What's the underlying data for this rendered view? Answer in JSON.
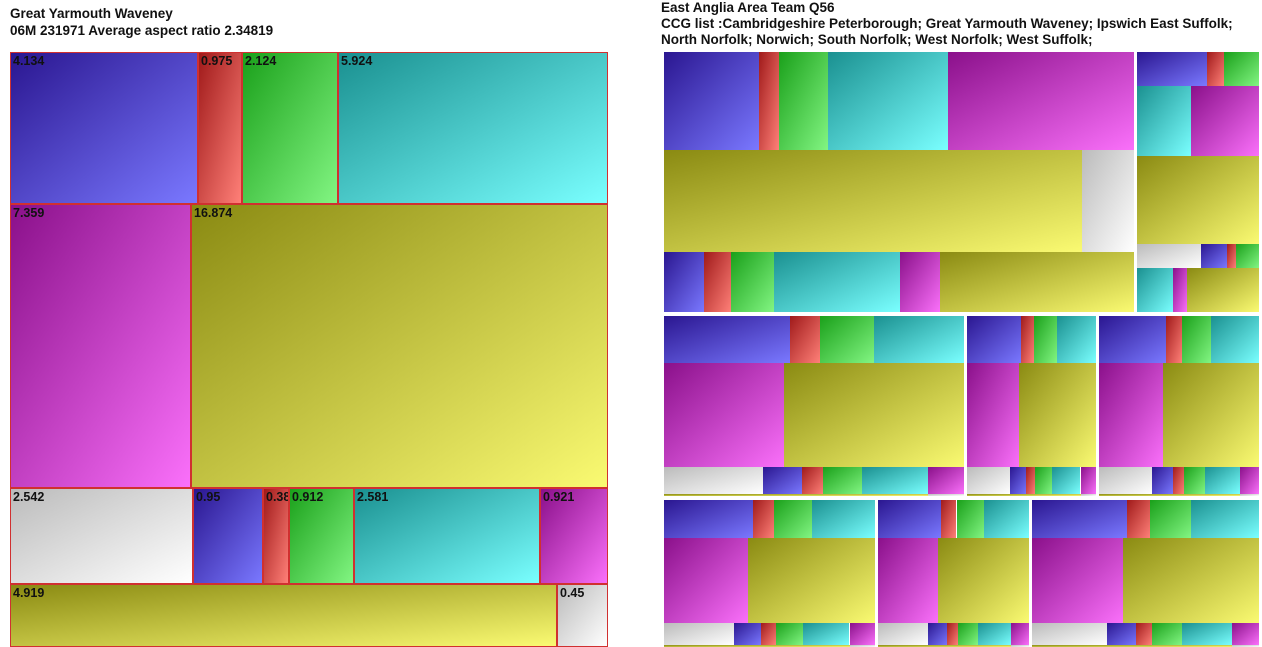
{
  "left_header": {
    "title": "Great Yarmouth  Waveney",
    "subtitle": "06M  231971  Average aspect ratio 2.34819"
  },
  "right_header": {
    "title": "East Anglia Area Team  Q56",
    "ccg_line1": "CCG list :Cambridgeshire  Peterborough; Great Yarmouth  Waveney; Ipswich East Suffolk;",
    "ccg_line2": "North Norfolk; Norwich; South Norfolk; West Norfolk; West Suffolk;"
  },
  "colors": {
    "blue": [
      "#2a1690",
      "#7a78ff"
    ],
    "red": [
      "#a01a1a",
      "#ff8078"
    ],
    "green": [
      "#1aa01a",
      "#82f582"
    ],
    "teal": [
      "#1a9090",
      "#7affff"
    ],
    "magenta": [
      "#8a108a",
      "#fa70fa"
    ],
    "olive": [
      "#8a8a12",
      "#fafa72"
    ],
    "gray": [
      "#bbbbbb",
      "#ffffff"
    ]
  },
  "chart_data": [
    {
      "type": "treemap",
      "title": "Great Yarmouth  Waveney",
      "subtitle": "06M  231971  Average aspect ratio 2.34819",
      "cells": [
        {
          "label": "4.134",
          "value": 4.134,
          "color": "blue"
        },
        {
          "label": "0.975",
          "value": 0.975,
          "color": "red"
        },
        {
          "label": "2.124",
          "value": 2.124,
          "color": "green"
        },
        {
          "label": "5.924",
          "value": 5.924,
          "color": "teal"
        },
        {
          "label": "7.359",
          "value": 7.359,
          "color": "magenta"
        },
        {
          "label": "16.874",
          "value": 16.874,
          "color": "olive"
        },
        {
          "label": "2.542",
          "value": 2.542,
          "color": "gray"
        },
        {
          "label": "0.95",
          "value": 0.95,
          "color": "blue"
        },
        {
          "label": "0.38",
          "value": 0.38,
          "color": "red"
        },
        {
          "label": "0.912",
          "value": 0.912,
          "color": "green"
        },
        {
          "label": "2.581",
          "value": 2.581,
          "color": "teal"
        },
        {
          "label": "0.921",
          "value": 0.921,
          "color": "magenta"
        },
        {
          "label": "4.919",
          "value": 4.919,
          "color": "olive"
        },
        {
          "label": "0.45",
          "value": 0.45,
          "color": "gray"
        }
      ]
    },
    {
      "type": "treemap",
      "title": "East Anglia Area Team  Q56",
      "ccg_list": [
        "Cambridgeshire  Peterborough",
        "Great Yarmouth  Waveney",
        "Ipswich East Suffolk",
        "North Norfolk",
        "Norwich",
        "South Norfolk",
        "West Norfolk",
        "West Suffolk"
      ],
      "panel_count": 8
    }
  ]
}
